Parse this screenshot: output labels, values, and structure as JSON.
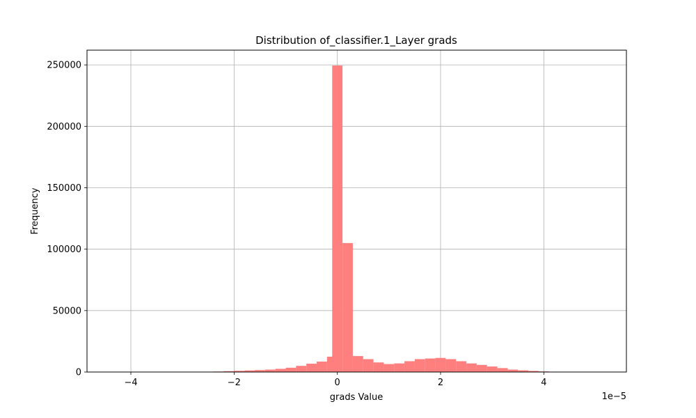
{
  "chart_data": {
    "type": "bar",
    "title": "Distribution of_classifier.1_Layer grads",
    "xlabel": "grads Value",
    "ylabel": "Frequency",
    "x_offset_label": "1e−5",
    "xlim": [
      -4.85,
      5.6
    ],
    "ylim": [
      0,
      262000
    ],
    "grid": true,
    "bar_color": "#ff7f7f",
    "bin_width": 0.2,
    "bins": [
      {
        "x0": -4.4,
        "value": 0
      },
      {
        "x0": -4.2,
        "value": 0
      },
      {
        "x0": -4.0,
        "value": 0
      },
      {
        "x0": -3.8,
        "value": 0
      },
      {
        "x0": -3.6,
        "value": 0
      },
      {
        "x0": -3.4,
        "value": 0
      },
      {
        "x0": -3.2,
        "value": 0
      },
      {
        "x0": -3.0,
        "value": 0
      },
      {
        "x0": -2.8,
        "value": 100
      },
      {
        "x0": -2.6,
        "value": 200
      },
      {
        "x0": -2.4,
        "value": 400
      },
      {
        "x0": -2.2,
        "value": 700
      },
      {
        "x0": -2.0,
        "value": 1000
      },
      {
        "x0": -1.8,
        "value": 1300
      },
      {
        "x0": -1.6,
        "value": 1600
      },
      {
        "x0": -1.4,
        "value": 2000
      },
      {
        "x0": -1.2,
        "value": 2600
      },
      {
        "x0": -1.0,
        "value": 3500
      },
      {
        "x0": -0.8,
        "value": 5000
      },
      {
        "x0": -0.6,
        "value": 6800
      },
      {
        "x0": -0.4,
        "value": 8500
      },
      {
        "x0": -0.2,
        "value": 12500
      },
      {
        "x0": -0.1,
        "value": 249500
      },
      {
        "x0": 0.1,
        "value": 105000
      },
      {
        "x0": 0.3,
        "value": 13000
      },
      {
        "x0": 0.5,
        "value": 10500
      },
      {
        "x0": 0.7,
        "value": 7800
      },
      {
        "x0": 0.9,
        "value": 6500
      },
      {
        "x0": 1.1,
        "value": 7000
      },
      {
        "x0": 1.3,
        "value": 8800
      },
      {
        "x0": 1.5,
        "value": 10500
      },
      {
        "x0": 1.7,
        "value": 11000
      },
      {
        "x0": 1.9,
        "value": 11500
      },
      {
        "x0": 2.1,
        "value": 10500
      },
      {
        "x0": 2.3,
        "value": 8800
      },
      {
        "x0": 2.5,
        "value": 7000
      },
      {
        "x0": 2.7,
        "value": 5800
      },
      {
        "x0": 2.9,
        "value": 4500
      },
      {
        "x0": 3.1,
        "value": 3200
      },
      {
        "x0": 3.3,
        "value": 2000
      },
      {
        "x0": 3.5,
        "value": 1400
      },
      {
        "x0": 3.7,
        "value": 900
      },
      {
        "x0": 3.9,
        "value": 500
      },
      {
        "x0": 4.1,
        "value": 250
      },
      {
        "x0": 4.3,
        "value": 100
      },
      {
        "x0": 4.5,
        "value": 50
      },
      {
        "x0": 4.7,
        "value": 20
      },
      {
        "x0": 4.9,
        "value": 10
      }
    ],
    "x_ticks": [
      {
        "value": -4,
        "label": "−4"
      },
      {
        "value": -2,
        "label": "−2"
      },
      {
        "value": 0,
        "label": "0"
      },
      {
        "value": 2,
        "label": "2"
      },
      {
        "value": 4,
        "label": "4"
      }
    ],
    "y_ticks": [
      {
        "value": 0,
        "label": "0"
      },
      {
        "value": 50000,
        "label": "50000"
      },
      {
        "value": 100000,
        "label": "100000"
      },
      {
        "value": 150000,
        "label": "150000"
      },
      {
        "value": 200000,
        "label": "200000"
      },
      {
        "value": 250000,
        "label": "250000"
      }
    ]
  }
}
